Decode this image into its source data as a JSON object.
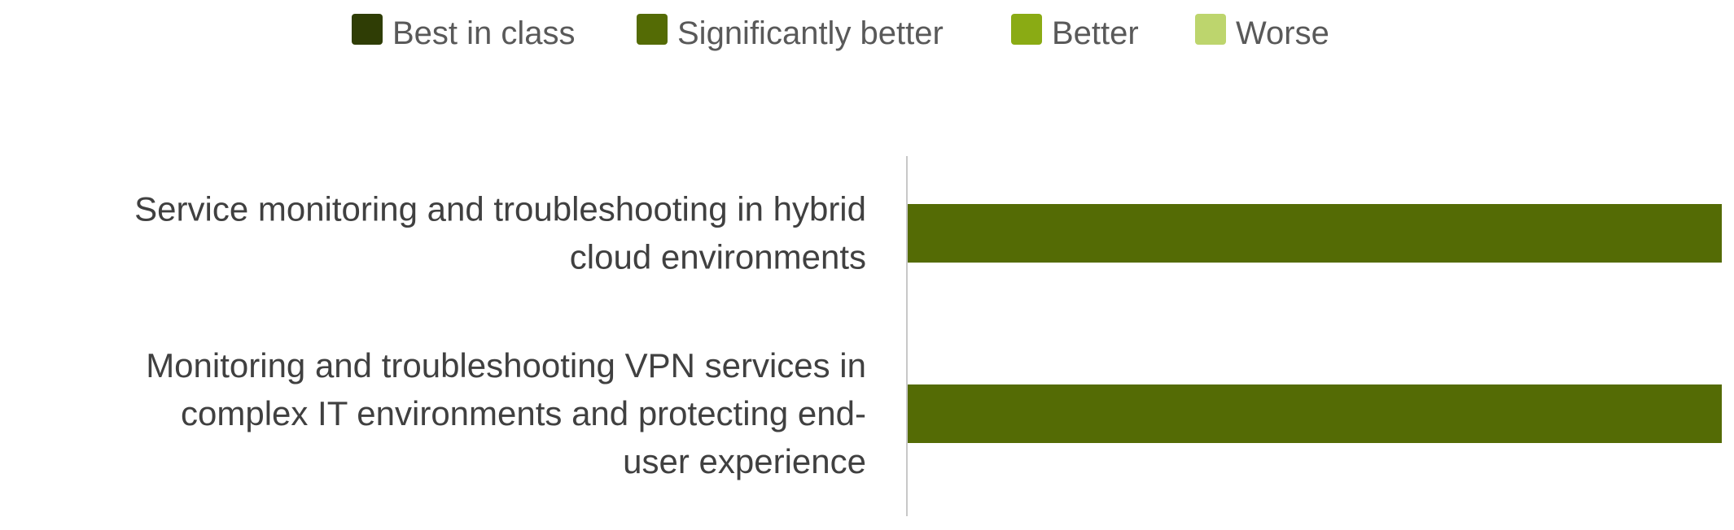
{
  "chart_data": {
    "type": "bar",
    "orientation": "horizontal",
    "categories": [
      "Service monitoring and troubleshooting in hybrid cloud environments",
      "Monitoring and troubleshooting VPN services in complex IT environments and protecting end-user experience"
    ],
    "category_lines": [
      [
        "Service monitoring and troubleshooting in hybrid",
        "cloud environments"
      ],
      [
        "Monitoring and troubleshooting VPN services in",
        "complex IT environments and protecting end-",
        "user experience"
      ]
    ],
    "series": [
      {
        "name": "Best in class",
        "color": "#2f3d05",
        "values": [
          0,
          0
        ]
      },
      {
        "name": "Significantly better",
        "color": "#546b05",
        "values": [
          100,
          100
        ]
      },
      {
        "name": "Better",
        "color": "#8aab14",
        "values": [
          0,
          0
        ]
      },
      {
        "name": "Worse",
        "color": "#bdd56d",
        "values": [
          0,
          0
        ]
      }
    ],
    "xlim": [
      0,
      100
    ],
    "stacked": true,
    "legend_position": "top",
    "grid": false,
    "title": "",
    "xlabel": "",
    "ylabel": ""
  }
}
